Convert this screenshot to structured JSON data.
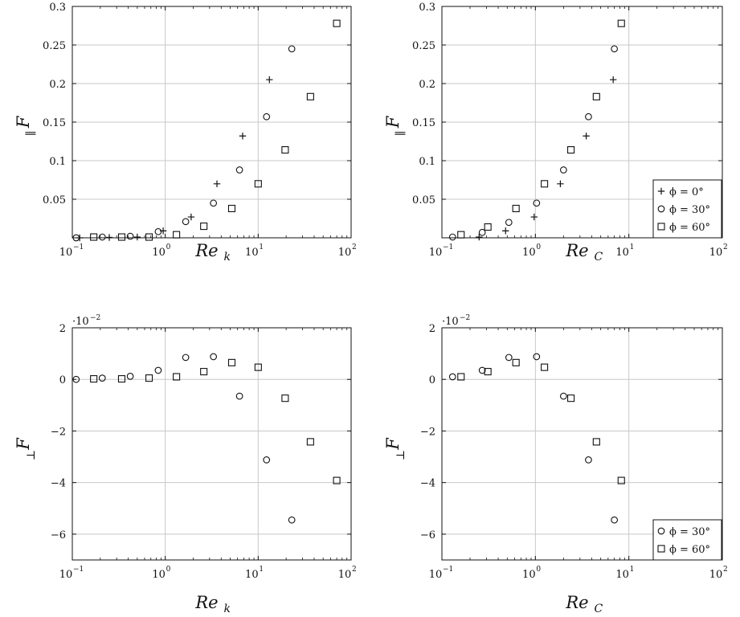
{
  "chart_data": [
    {
      "id": "top-left",
      "type": "scatter",
      "xlabel": "Re",
      "xlabel_sub": "k",
      "ylabel": "F",
      "ylabel_sub": "∥",
      "xscale": "log",
      "xlim": [
        0.1,
        100
      ],
      "xticks": [
        {
          "v": 0.1,
          "mantissa": "10",
          "exp": "−1"
        },
        {
          "v": 1,
          "mantissa": "10",
          "exp": "0"
        },
        {
          "v": 10,
          "mantissa": "10",
          "exp": "1"
        },
        {
          "v": 100,
          "mantissa": "10",
          "exp": "2"
        }
      ],
      "ylim": [
        0,
        0.3
      ],
      "yticks": [
        {
          "v": 0.05,
          "label": "0.05"
        },
        {
          "v": 0.1,
          "label": "0.1"
        },
        {
          "v": 0.15,
          "label": "0.15"
        },
        {
          "v": 0.2,
          "label": "0.2"
        },
        {
          "v": 0.25,
          "label": "0.25"
        },
        {
          "v": 0.3,
          "label": "0.3"
        }
      ],
      "y_multiplier": "",
      "grid": true,
      "legend": null,
      "series": [
        {
          "marker": "plus",
          "x": [
            0.12,
            0.25,
            0.5,
            0.95,
            1.9,
            3.6,
            6.8,
            13.2
          ],
          "y": [
            0.0,
            0.0005,
            0.001,
            0.009,
            0.027,
            0.07,
            0.132,
            0.205
          ]
        },
        {
          "marker": "circle",
          "x": [
            0.11,
            0.21,
            0.42,
            0.84,
            1.66,
            3.3,
            6.3,
            12.3,
            23.0
          ],
          "y": [
            0.0,
            0.001,
            0.002,
            0.008,
            0.021,
            0.045,
            0.088,
            0.157,
            0.245
          ]
        },
        {
          "marker": "square",
          "x": [
            0.17,
            0.34,
            0.67,
            1.32,
            2.6,
            5.2,
            10.0,
            19.5,
            36.5,
            70.0
          ],
          "y": [
            0.001,
            0.001,
            0.001,
            0.004,
            0.015,
            0.038,
            0.07,
            0.114,
            0.183,
            0.278
          ]
        }
      ]
    },
    {
      "id": "top-right",
      "type": "scatter",
      "xlabel": "Re",
      "xlabel_sub": "C",
      "ylabel": "F",
      "ylabel_sub": "∥",
      "xscale": "log",
      "xlim": [
        0.1,
        100
      ],
      "xticks": [
        {
          "v": 0.1,
          "mantissa": "10",
          "exp": "−1"
        },
        {
          "v": 1,
          "mantissa": "10",
          "exp": "0"
        },
        {
          "v": 10,
          "mantissa": "10",
          "exp": "1"
        },
        {
          "v": 100,
          "mantissa": "10",
          "exp": "2"
        }
      ],
      "ylim": [
        0,
        0.3
      ],
      "yticks": [
        {
          "v": 0.05,
          "label": "0.05"
        },
        {
          "v": 0.1,
          "label": "0.1"
        },
        {
          "v": 0.15,
          "label": "0.15"
        },
        {
          "v": 0.2,
          "label": "0.2"
        },
        {
          "v": 0.25,
          "label": "0.25"
        },
        {
          "v": 0.3,
          "label": "0.3"
        }
      ],
      "y_multiplier": "",
      "grid": true,
      "legend": {
        "position": "bottom-right",
        "entries": [
          {
            "marker": "plus",
            "label": "ϕ = 0°"
          },
          {
            "marker": "circle",
            "label": "ϕ = 30°"
          },
          {
            "marker": "square",
            "label": "ϕ = 60°"
          }
        ]
      },
      "series": [
        {
          "marker": "plus",
          "x": [
            0.25,
            0.48,
            0.97,
            1.85,
            3.5,
            6.8
          ],
          "y": [
            0.001,
            0.009,
            0.027,
            0.07,
            0.132,
            0.205
          ]
        },
        {
          "marker": "circle",
          "x": [
            0.13,
            0.27,
            0.52,
            1.03,
            2.0,
            3.7,
            7.0
          ],
          "y": [
            0.001,
            0.007,
            0.02,
            0.045,
            0.088,
            0.157,
            0.245
          ]
        },
        {
          "marker": "square",
          "x": [
            0.16,
            0.31,
            0.62,
            1.25,
            2.4,
            4.5,
            8.3
          ],
          "y": [
            0.004,
            0.014,
            0.038,
            0.07,
            0.114,
            0.183,
            0.278
          ]
        }
      ]
    },
    {
      "id": "bottom-left",
      "type": "scatter",
      "xlabel": "Re",
      "xlabel_sub": "k",
      "ylabel": "F",
      "ylabel_sub": "⊥",
      "xscale": "log",
      "xlim": [
        0.1,
        100
      ],
      "xticks": [
        {
          "v": 0.1,
          "mantissa": "10",
          "exp": "−1"
        },
        {
          "v": 1,
          "mantissa": "10",
          "exp": "0"
        },
        {
          "v": 10,
          "mantissa": "10",
          "exp": "1"
        },
        {
          "v": 100,
          "mantissa": "10",
          "exp": "2"
        }
      ],
      "ylim": [
        -7,
        2
      ],
      "yticks": [
        {
          "v": -6,
          "label": "−6"
        },
        {
          "v": -4,
          "label": "−4"
        },
        {
          "v": -2,
          "label": "−2"
        },
        {
          "v": 0,
          "label": "0"
        },
        {
          "v": 2,
          "label": "2"
        }
      ],
      "y_multiplier": {
        "mantissa": "·10",
        "exp": "−2"
      },
      "grid": true,
      "legend": null,
      "series": [
        {
          "marker": "circle",
          "x": [
            0.11,
            0.21,
            0.42,
            0.84,
            1.66,
            3.3,
            6.3,
            12.3,
            23.0
          ],
          "y": [
            0.0,
            0.05,
            0.12,
            0.35,
            0.85,
            0.88,
            -0.65,
            -3.12,
            -5.45
          ]
        },
        {
          "marker": "square",
          "x": [
            0.17,
            0.34,
            0.67,
            1.32,
            2.6,
            5.2,
            10.0,
            19.5,
            36.5,
            70.0
          ],
          "y": [
            0.02,
            0.02,
            0.05,
            0.1,
            0.3,
            0.65,
            0.47,
            -0.73,
            -2.42,
            -3.92
          ]
        }
      ]
    },
    {
      "id": "bottom-right",
      "type": "scatter",
      "xlabel": "Re",
      "xlabel_sub": "C",
      "ylabel": "F",
      "ylabel_sub": "⊥",
      "xscale": "log",
      "xlim": [
        0.1,
        100
      ],
      "xticks": [
        {
          "v": 0.1,
          "mantissa": "10",
          "exp": "−1"
        },
        {
          "v": 1,
          "mantissa": "10",
          "exp": "0"
        },
        {
          "v": 10,
          "mantissa": "10",
          "exp": "1"
        },
        {
          "v": 100,
          "mantissa": "10",
          "exp": "2"
        }
      ],
      "ylim": [
        -7,
        2
      ],
      "yticks": [
        {
          "v": -6,
          "label": "−6"
        },
        {
          "v": -4,
          "label": "−4"
        },
        {
          "v": -2,
          "label": "−2"
        },
        {
          "v": 0,
          "label": "0"
        },
        {
          "v": 2,
          "label": "2"
        }
      ],
      "y_multiplier": {
        "mantissa": "·10",
        "exp": "−2"
      },
      "grid": true,
      "legend": {
        "position": "bottom-right",
        "entries": [
          {
            "marker": "circle",
            "label": "ϕ = 30°"
          },
          {
            "marker": "square",
            "label": "ϕ = 60°"
          }
        ]
      },
      "series": [
        {
          "marker": "circle",
          "x": [
            0.13,
            0.27,
            0.52,
            1.03,
            2.0,
            3.7,
            7.0
          ],
          "y": [
            0.1,
            0.35,
            0.85,
            0.88,
            -0.65,
            -3.12,
            -5.45
          ]
        },
        {
          "marker": "square",
          "x": [
            0.16,
            0.31,
            0.62,
            1.25,
            2.4,
            4.5,
            8.3
          ],
          "y": [
            0.1,
            0.3,
            0.65,
            0.47,
            -0.73,
            -2.42,
            -3.92
          ]
        }
      ]
    }
  ]
}
